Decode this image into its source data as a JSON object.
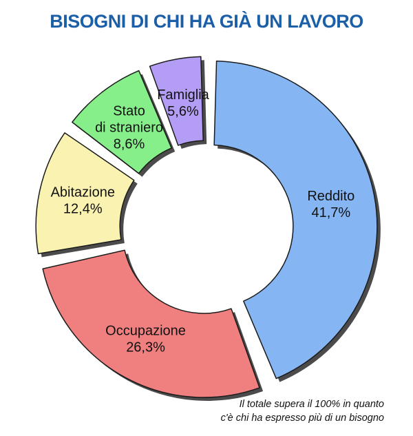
{
  "chart_data": {
    "type": "pie",
    "title": "BISOGNI DI CHI HA GIÀ UN LAVORO",
    "title_color": "#1a5fa8",
    "slices": [
      {
        "label": [
          "Reddito"
        ],
        "value": 41.7,
        "value_label": "41,7%",
        "color": "#85b6f3"
      },
      {
        "label": [
          "Occupazione"
        ],
        "value": 26.3,
        "value_label": "26,3%",
        "color": "#f07f7f"
      },
      {
        "label": [
          "Abitazione"
        ],
        "value": 12.4,
        "value_label": "12,4%",
        "color": "#f9f2b1"
      },
      {
        "label": [
          "Stato",
          "di straniero"
        ],
        "value": 8.6,
        "value_label": "8,6%",
        "color": "#86ef8a"
      },
      {
        "label": [
          "Famiglia"
        ],
        "value": 5.6,
        "value_label": "5,6%",
        "color": "#b49ef5"
      }
    ],
    "donut": true,
    "exploded": true,
    "footnote": [
      "Il totale supera il 100% in quanto",
      "c'è chi ha espresso più di un bisogno"
    ]
  }
}
